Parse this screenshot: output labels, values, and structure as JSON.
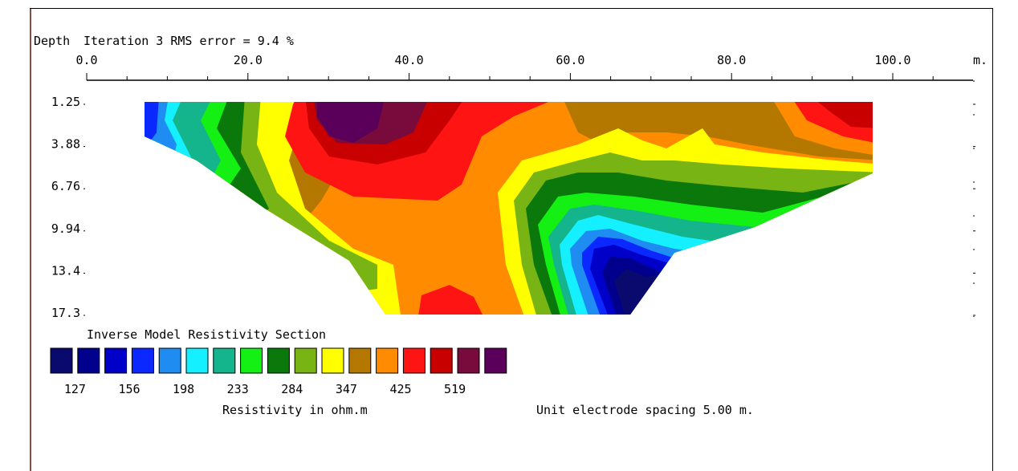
{
  "chart_data": {
    "type": "heatmap",
    "title": "Iteration 3 RMS error = 9.4 %",
    "depth_label": "Depth",
    "x_unit": "m.",
    "x_ticks": [
      "0.0",
      "20.0",
      "40.0",
      "60.0",
      "80.0",
      "100.0"
    ],
    "x_range": [
      0,
      100
    ],
    "depth_ticks": [
      "1.25",
      "3.88",
      "6.76",
      "9.94",
      "13.4",
      "17.3"
    ],
    "legend_title": "Inverse Model Resistivity Section",
    "legend_colors": [
      "#0a0a6e",
      "#00008c",
      "#0000c8",
      "#0a28ff",
      "#1e8cf0",
      "#14f0ff",
      "#14b48c",
      "#14f014",
      "#0a780a",
      "#78b414",
      "#ffff00",
      "#b47800",
      "#ff8c00",
      "#ff1414",
      "#c80000",
      "#780a3c",
      "#5a005a"
    ],
    "legend_values": [
      "127",
      "156",
      "198",
      "233",
      "284",
      "347",
      "425",
      "519"
    ],
    "resistivity_label": "Resistivity in ohm.m",
    "electrode_spacing": "Unit electrode spacing 5.00 m."
  }
}
